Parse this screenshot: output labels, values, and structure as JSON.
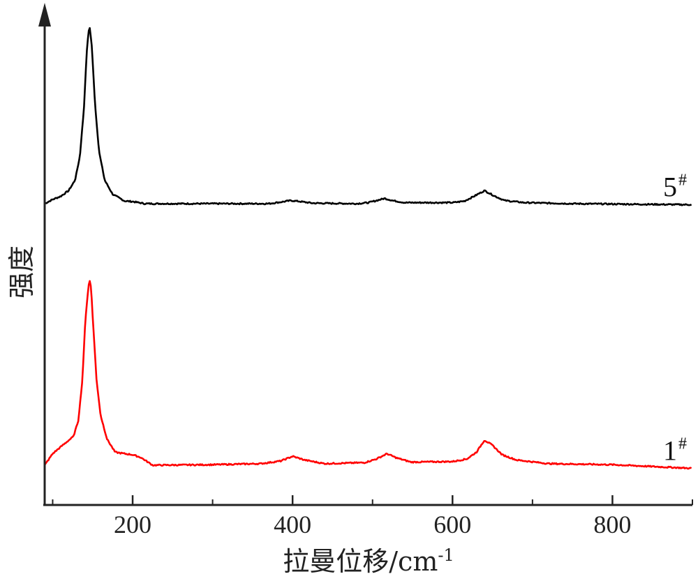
{
  "chart_data": {
    "type": "line",
    "title": "",
    "xlabel": "拉曼位移/cm",
    "xlabel_sup": "-1",
    "ylabel": "强度",
    "xlim": [
      90,
      900
    ],
    "x_ticks": [
      200,
      400,
      600,
      800
    ],
    "x_tick_labels": [
      "200",
      "400",
      "600",
      "800"
    ],
    "x_minor_step": 100,
    "y_ticks": false,
    "grid": false,
    "legend": false,
    "series": [
      {
        "name": "5",
        "name_sup": "#",
        "color": "#000000",
        "baseline": 1.0,
        "points": [
          [
            90,
            0.0
          ],
          [
            100,
            0.08
          ],
          [
            110,
            0.14
          ],
          [
            120,
            0.25
          ],
          [
            128,
            0.45
          ],
          [
            134,
            0.9
          ],
          [
            139,
            1.8
          ],
          [
            143,
            3.0
          ],
          [
            146,
            3.42
          ],
          [
            149,
            3.0
          ],
          [
            153,
            1.9
          ],
          [
            158,
            1.0
          ],
          [
            165,
            0.45
          ],
          [
            175,
            0.18
          ],
          [
            190,
            0.05
          ],
          [
            200,
            0.04
          ],
          [
            215,
            0.0
          ],
          [
            300,
            0.0
          ],
          [
            370,
            0.0
          ],
          [
            385,
            0.03
          ],
          [
            398,
            0.06
          ],
          [
            410,
            0.04
          ],
          [
            425,
            0.01
          ],
          [
            480,
            0.0
          ],
          [
            495,
            0.02
          ],
          [
            505,
            0.06
          ],
          [
            515,
            0.1
          ],
          [
            525,
            0.06
          ],
          [
            540,
            0.02
          ],
          [
            600,
            0.02
          ],
          [
            615,
            0.05
          ],
          [
            628,
            0.15
          ],
          [
            640,
            0.25
          ],
          [
            652,
            0.15
          ],
          [
            665,
            0.06
          ],
          [
            690,
            0.02
          ],
          [
            750,
            0.0
          ],
          [
            900,
            -0.02
          ]
        ]
      },
      {
        "name": "1",
        "name_sup": "#",
        "color": "#ff0000",
        "baseline": 0.0,
        "points": [
          [
            90,
            0.0
          ],
          [
            100,
            0.22
          ],
          [
            110,
            0.35
          ],
          [
            118,
            0.45
          ],
          [
            126,
            0.55
          ],
          [
            132,
            0.85
          ],
          [
            137,
            1.6
          ],
          [
            141,
            2.8
          ],
          [
            144,
            3.3
          ],
          [
            146,
            3.55
          ],
          [
            148,
            3.4
          ],
          [
            151,
            2.6
          ],
          [
            155,
            1.6
          ],
          [
            160,
            0.95
          ],
          [
            168,
            0.5
          ],
          [
            178,
            0.25
          ],
          [
            190,
            0.22
          ],
          [
            200,
            0.2
          ],
          [
            210,
            0.15
          ],
          [
            225,
            0.0
          ],
          [
            300,
            0.01
          ],
          [
            360,
            0.03
          ],
          [
            385,
            0.08
          ],
          [
            400,
            0.17
          ],
          [
            415,
            0.1
          ],
          [
            440,
            0.03
          ],
          [
            490,
            0.05
          ],
          [
            505,
            0.12
          ],
          [
            518,
            0.22
          ],
          [
            530,
            0.14
          ],
          [
            548,
            0.06
          ],
          [
            600,
            0.07
          ],
          [
            618,
            0.12
          ],
          [
            630,
            0.25
          ],
          [
            640,
            0.48
          ],
          [
            650,
            0.38
          ],
          [
            662,
            0.2
          ],
          [
            680,
            0.1
          ],
          [
            720,
            0.03
          ],
          [
            800,
            0.01
          ],
          [
            900,
            -0.06
          ]
        ]
      }
    ]
  }
}
